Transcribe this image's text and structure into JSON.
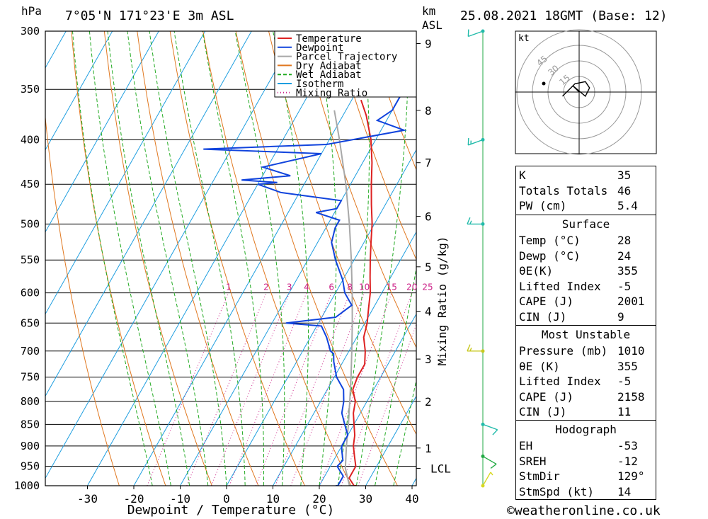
{
  "header": {
    "pressure_unit": "hPa",
    "location": "7°05'N 171°23'E 3m ASL",
    "km_unit": "km",
    "asl_unit": "ASL",
    "datetime": "25.08.2021 18GMT (Base: 12)"
  },
  "chart_data": {
    "type": "line",
    "xlabel": "Dewpoint / Temperature (°C)",
    "ylabel_right": "Mixing Ratio (g/kg)",
    "x_ticks": [
      -30,
      -20,
      -10,
      0,
      10,
      20,
      30,
      40
    ],
    "pressure_levels": [
      300,
      350,
      400,
      450,
      500,
      550,
      600,
      650,
      700,
      750,
      800,
      850,
      900,
      950,
      1000
    ],
    "height_km_ticks": [
      "9",
      "8",
      "7",
      "6",
      "5",
      "4",
      "3",
      "2",
      "1"
    ],
    "height_km_pressures": [
      310,
      370,
      425,
      490,
      560,
      630,
      715,
      800,
      905
    ],
    "lcl_label": "LCL",
    "lcl_pressure": 955,
    "mixing_ratio_labels": [
      "1",
      "2",
      "3",
      "4",
      "6",
      "8",
      "10",
      "15",
      "20",
      "25"
    ],
    "mixing_ratio_values": [
      1,
      2,
      3,
      4,
      6,
      8,
      10,
      15,
      20,
      25
    ],
    "legend": [
      "Temperature",
      "Dewpoint",
      "Parcel Trajectory",
      "Dry Adiabat",
      "Wet Adiabat",
      "Isotherm",
      "Mixing Ratio"
    ],
    "colors": {
      "temperature": "#dd2222",
      "dewpoint": "#1144dd",
      "parcel": "#a8a8a8",
      "dry_adiabat": "#e07820",
      "wet_adiabat": "#22aa22",
      "isotherm": "#1e9ee0",
      "mixing_ratio": "#cc2288"
    },
    "temperature": [
      [
        1010,
        28.5
      ],
      [
        1000,
        27.5
      ],
      [
        980,
        25.5
      ],
      [
        950,
        25.5
      ],
      [
        925,
        24.0
      ],
      [
        900,
        22.5
      ],
      [
        875,
        21.5
      ],
      [
        850,
        20.0
      ],
      [
        825,
        18.5
      ],
      [
        800,
        17.5
      ],
      [
        775,
        15.5
      ],
      [
        750,
        15.0
      ],
      [
        725,
        15.0
      ],
      [
        700,
        13.5
      ],
      [
        675,
        11.5
      ],
      [
        650,
        10.5
      ],
      [
        625,
        9.0
      ],
      [
        600,
        7.5
      ],
      [
        575,
        5.5
      ],
      [
        550,
        3.5
      ],
      [
        525,
        1.5
      ],
      [
        500,
        -0.5
      ],
      [
        475,
        -3.0
      ],
      [
        450,
        -5.5
      ],
      [
        425,
        -8.0
      ],
      [
        400,
        -11.0
      ],
      [
        375,
        -15.0
      ],
      [
        360,
        -18.0
      ]
    ],
    "dewpoint": [
      [
        1010,
        24.0
      ],
      [
        1000,
        24.0
      ],
      [
        975,
        24.0
      ],
      [
        950,
        21.5
      ],
      [
        935,
        22.0
      ],
      [
        910,
        20.5
      ],
      [
        900,
        20.0
      ],
      [
        875,
        20.0
      ],
      [
        850,
        18.0
      ],
      [
        825,
        16.0
      ],
      [
        800,
        15.0
      ],
      [
        775,
        13.5
      ],
      [
        750,
        10.5
      ],
      [
        720,
        8.0
      ],
      [
        705,
        7.0
      ],
      [
        700,
        6.0
      ],
      [
        675,
        3.5
      ],
      [
        655,
        1.0
      ],
      [
        650,
        -7.0
      ],
      [
        640,
        3.0
      ],
      [
        620,
        5.0
      ],
      [
        600,
        2.0
      ],
      [
        580,
        0.0
      ],
      [
        550,
        -4.0
      ],
      [
        525,
        -7.0
      ],
      [
        505,
        -8.0
      ],
      [
        495,
        -8.0
      ],
      [
        485,
        -14.0
      ],
      [
        480,
        -10.0
      ],
      [
        470,
        -10.0
      ],
      [
        460,
        -24.0
      ],
      [
        450,
        -30.0
      ],
      [
        448,
        -26.0
      ],
      [
        445,
        -34.0
      ],
      [
        440,
        -24.0
      ],
      [
        430,
        -31.0
      ],
      [
        415,
        -20.0
      ],
      [
        410,
        -46.0
      ],
      [
        405,
        -20.0
      ],
      [
        390,
        -5.0
      ],
      [
        380,
        -12.0
      ],
      [
        370,
        -10.0
      ],
      [
        355,
        -10.0
      ],
      [
        345,
        -14.0
      ],
      [
        330,
        -13.0
      ],
      [
        315,
        -14.0
      ],
      [
        300,
        -18.0
      ]
    ],
    "parcel": [
      [
        1010,
        28.0
      ],
      [
        1000,
        26.5
      ],
      [
        955,
        23.5
      ],
      [
        900,
        21.0
      ],
      [
        850,
        18.8
      ],
      [
        800,
        16.3
      ],
      [
        750,
        13.6
      ],
      [
        700,
        10.6
      ],
      [
        650,
        7.3
      ],
      [
        600,
        3.6
      ],
      [
        550,
        -0.6
      ],
      [
        500,
        -5.4
      ],
      [
        450,
        -11.0
      ],
      [
        400,
        -17.8
      ],
      [
        370,
        -22.5
      ]
    ],
    "isotherms": [
      -100,
      -90,
      -80,
      -70,
      -60,
      -50,
      -40,
      -30,
      -20,
      -10,
      0,
      10,
      20,
      30,
      40
    ],
    "dry_adiabats_theta_k": [
      250,
      260,
      270,
      280,
      290,
      300,
      310,
      320,
      330,
      340,
      350,
      360,
      370,
      380,
      390,
      400,
      410,
      420,
      430,
      440,
      450,
      460,
      470,
      480
    ],
    "wet_adiabats_start_c": [
      -16,
      -12,
      -8,
      -4,
      0,
      4,
      8,
      12,
      16,
      20,
      24,
      28,
      32,
      36
    ],
    "x_range": [
      -40,
      40
    ],
    "p_range": [
      300,
      1000
    ],
    "wind_barbs": [
      {
        "pressure": 300,
        "dir": 250,
        "kt": 10,
        "color": "#22bbaa"
      },
      {
        "pressure": 400,
        "dir": 250,
        "kt": 15,
        "color": "#22bbaa"
      },
      {
        "pressure": 500,
        "dir": 270,
        "kt": 15,
        "color": "#22bbaa"
      },
      {
        "pressure": 700,
        "dir": 270,
        "kt": 15,
        "color": "#c8c820"
      },
      {
        "pressure": 850,
        "dir": 110,
        "kt": 10,
        "color": "#22bbaa"
      },
      {
        "pressure": 925,
        "dir": 120,
        "kt": 10,
        "color": "#22aa44"
      },
      {
        "pressure": 1000,
        "dir": 30,
        "kt": 5,
        "color": "#d8d820"
      }
    ]
  },
  "hodograph": {
    "unit": "kt",
    "ring_labels": [
      "15",
      "30",
      "45"
    ],
    "trace": [
      [
        -8,
        -2
      ],
      [
        -2,
        4
      ],
      [
        3,
        5
      ],
      [
        5,
        2
      ],
      [
        3,
        -2
      ],
      [
        -3,
        3
      ],
      [
        0,
        0
      ]
    ]
  },
  "indices": {
    "rows": [
      {
        "label": "K",
        "value": "35"
      },
      {
        "label": "Totals Totals",
        "value": "46"
      },
      {
        "label": "PW (cm)",
        "value": "5.4"
      }
    ]
  },
  "surface": {
    "title": "Surface",
    "rows": [
      {
        "label": "Temp (°C)",
        "value": "28"
      },
      {
        "label": "Dewp (°C)",
        "value": "24"
      },
      {
        "label": "θE(K)",
        "value": "355"
      },
      {
        "label": "Lifted Index",
        "value": "-5"
      },
      {
        "label": "CAPE (J)",
        "value": "2001"
      },
      {
        "label": "CIN (J)",
        "value": "9"
      }
    ]
  },
  "most_unstable": {
    "title": "Most Unstable",
    "rows": [
      {
        "label": "Pressure (mb)",
        "value": "1010"
      },
      {
        "label": "θE (K)",
        "value": "355"
      },
      {
        "label": "Lifted Index",
        "value": "-5"
      },
      {
        "label": "CAPE (J)",
        "value": "2158"
      },
      {
        "label": "CIN (J)",
        "value": "11"
      }
    ]
  },
  "hodograph_table": {
    "title": "Hodograph",
    "rows": [
      {
        "label": "EH",
        "value": "-53"
      },
      {
        "label": "SREH",
        "value": "-12"
      },
      {
        "label": "StmDir",
        "value": "129°"
      },
      {
        "label": "StmSpd (kt)",
        "value": "14"
      }
    ]
  },
  "footer": {
    "copyright": "©weatheronline.co.uk"
  }
}
